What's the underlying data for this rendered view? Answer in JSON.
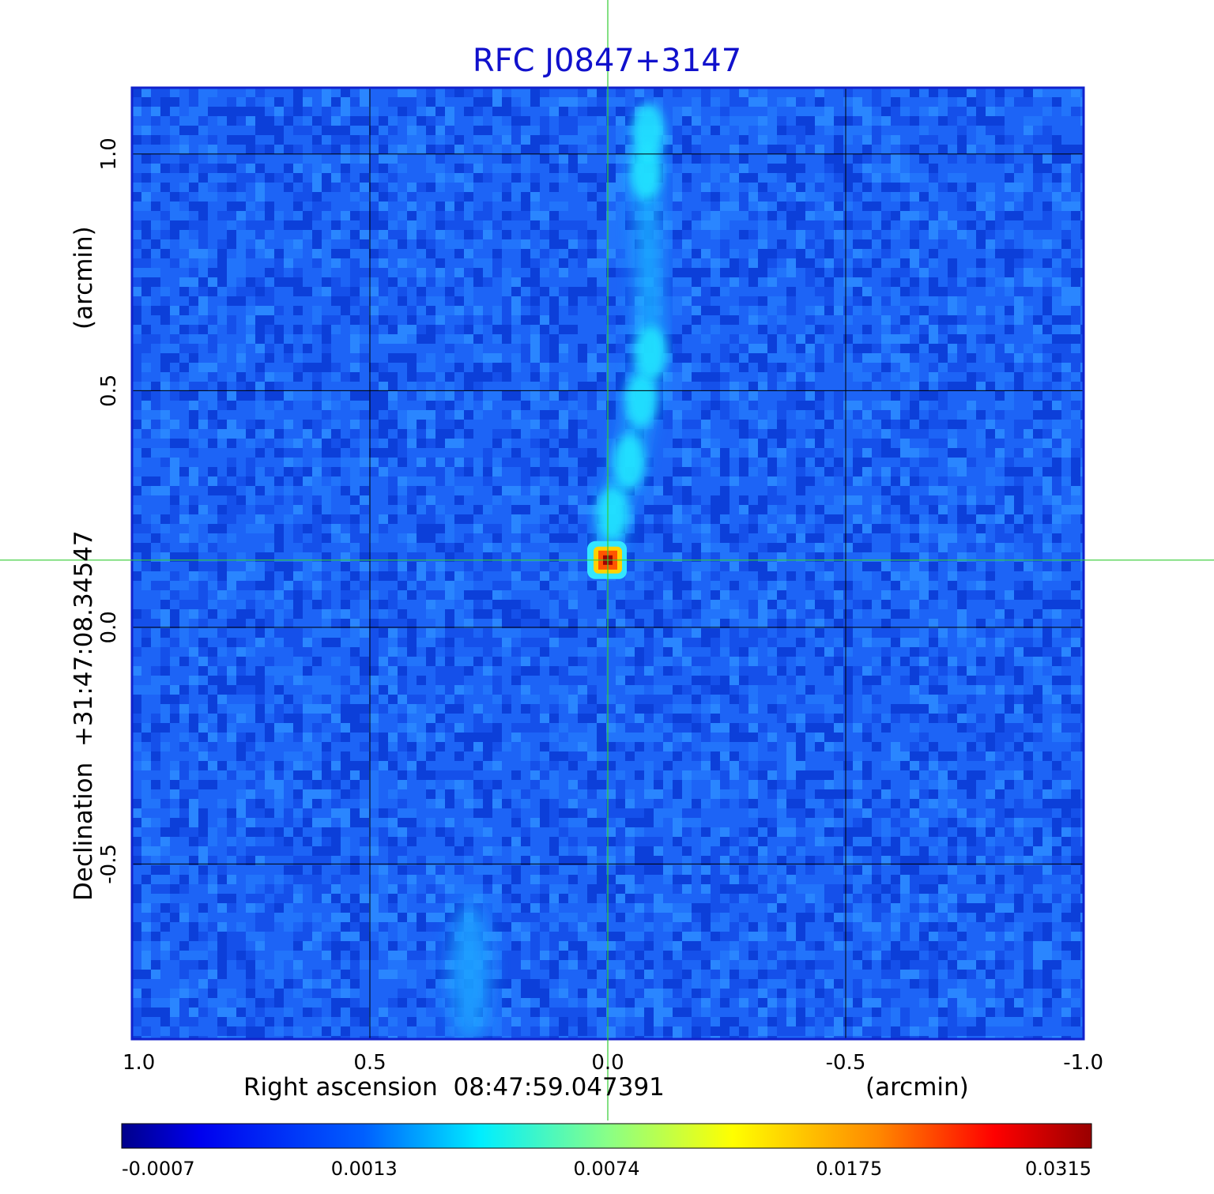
{
  "chart_data": {
    "type": "heatmap",
    "title": "RFC J0847+3147",
    "xlabel": "Right ascension  08:47:59.047391",
    "xlabel_unit": "(arcmin)",
    "ylabel": "Declination  +31:47:08.34547",
    "ylabel_unit": "(arcmin)",
    "x_range": [
      1.0,
      -1.0
    ],
    "y_range": [
      -0.87,
      1.14
    ],
    "x_ticks": [
      1.0,
      0.5,
      0.0,
      -0.5,
      -1.0
    ],
    "x_tick_labels": [
      "1.0",
      "0.5",
      "0.0",
      "-0.5",
      "-1.0"
    ],
    "y_ticks": [
      -0.5,
      0.0,
      0.5,
      1.0
    ],
    "y_tick_labels": [
      "-0.5",
      "0.0",
      "0.5",
      "1.0"
    ],
    "grid": true,
    "crosshair": {
      "x": 0.0,
      "y": 0.142,
      "color": "#33cc33"
    },
    "colormap": "jet",
    "colorbar": {
      "tick_labels": [
        "-0.0007",
        "0.0013",
        "0.0074",
        "0.0175",
        "0.0315"
      ],
      "values": [
        -0.0007,
        0.0013,
        0.0074,
        0.0175,
        0.0315
      ]
    },
    "background_level": -0.0003,
    "core": {
      "x": 0.0,
      "y": 0.142,
      "peak": 0.0315
    },
    "jet_knots": [
      {
        "x": -0.01,
        "y": 0.24,
        "flux": 0.0022
      },
      {
        "x": -0.045,
        "y": 0.35,
        "flux": 0.0021
      },
      {
        "x": -0.07,
        "y": 0.48,
        "flux": 0.0024
      },
      {
        "x": -0.09,
        "y": 0.58,
        "flux": 0.0026
      },
      {
        "x": -0.08,
        "y": 0.96,
        "flux": 0.0018
      },
      {
        "x": -0.085,
        "y": 1.05,
        "flux": 0.002
      }
    ],
    "secondary_feature": {
      "x": 0.29,
      "y": -0.73,
      "flux": 0.0012
    }
  }
}
